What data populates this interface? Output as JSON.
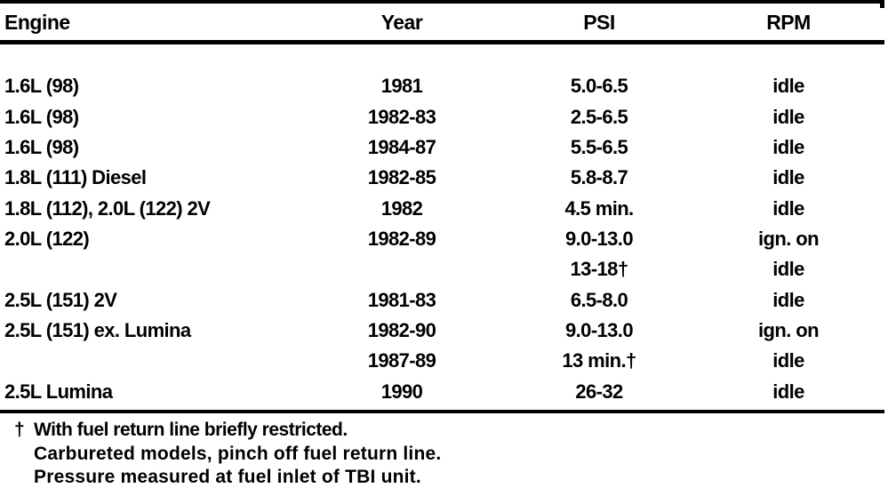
{
  "page": {
    "background_color": "#ffffff",
    "text_color": "#000000"
  },
  "table": {
    "headers": {
      "engine": "Engine",
      "year": "Year",
      "psi": "PSI",
      "rpm": "RPM"
    },
    "rows": [
      {
        "engine": "1.6L (98)",
        "year": "1981",
        "psi": "5.0-6.5",
        "rpm": "idle"
      },
      {
        "engine": "1.6L (98)",
        "year": "1982-83",
        "psi": "2.5-6.5",
        "rpm": "idle"
      },
      {
        "engine": "1.6L (98)",
        "year": "1984-87",
        "psi": "5.5-6.5",
        "rpm": "idle"
      },
      {
        "engine": "1.8L (111) Diesel",
        "year": "1982-85",
        "psi": "5.8-8.7",
        "rpm": "idle"
      },
      {
        "engine": "1.8L (112), 2.0L (122) 2V",
        "year": "1982",
        "psi": "4.5 min.",
        "rpm": "idle"
      },
      {
        "engine": "2.0L (122)",
        "year": "1982-89",
        "psi": "9.0-13.0",
        "rpm": "ign. on"
      },
      {
        "engine": "",
        "year": "",
        "psi": "13-18†",
        "rpm": "idle"
      },
      {
        "engine": "2.5L (151) 2V",
        "year": "1981-83",
        "psi": "6.5-8.0",
        "rpm": "idle"
      },
      {
        "engine": "2.5L (151) ex. Lumina",
        "year": "1982-90",
        "psi": "9.0-13.0",
        "rpm": "ign. on"
      },
      {
        "engine": "",
        "year": "1987-89",
        "psi": "13 min.†",
        "rpm": "idle"
      },
      {
        "engine": "2.5L Lumina",
        "year": "1990",
        "psi": "26-32",
        "rpm": "idle"
      }
    ]
  },
  "footnotes": {
    "dagger": "†",
    "line1": "With fuel return line briefly restricted.",
    "line2": "Carbureted models, pinch off fuel return line.",
    "line3": "Pressure measured at fuel inlet of TBI unit."
  }
}
